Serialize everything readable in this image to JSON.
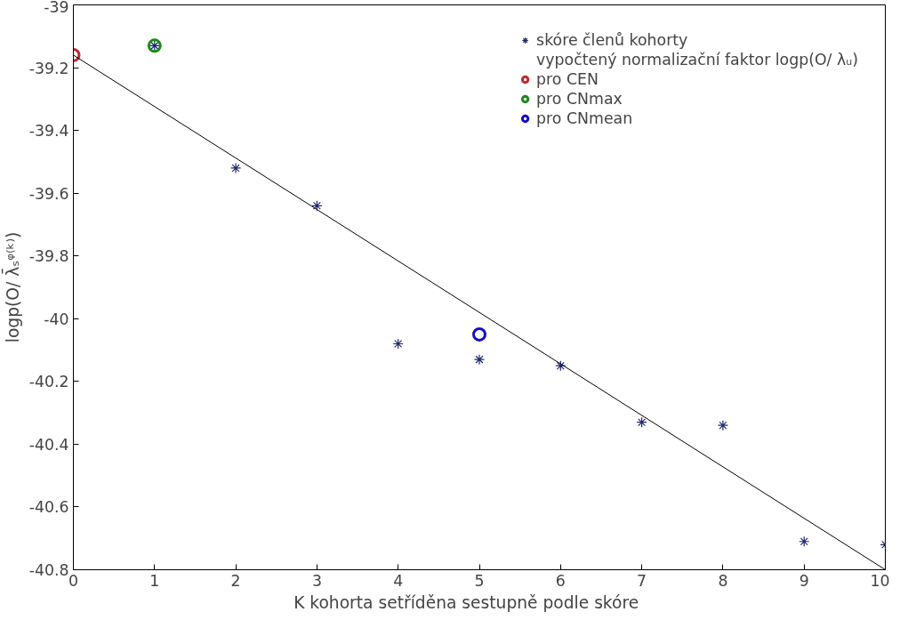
{
  "chart_data": {
    "type": "scatter",
    "xlabel": "K      kohorta setříděna sestupně podle skóre",
    "ylabel": "logp(O/ λ̄ₛᵠ⁽ᵏ⁾)",
    "xlim": [
      0,
      10
    ],
    "ylim": [
      -40.8,
      -39
    ],
    "xticks": [
      0,
      1,
      2,
      3,
      4,
      5,
      6,
      7,
      8,
      9,
      10
    ],
    "yticks": [
      -40.8,
      -40.6,
      -40.4,
      -40.2,
      -40,
      -39.8,
      -39.6,
      -39.4,
      -39.2,
      -39
    ],
    "grid": false,
    "legend": "top right",
    "annotations": [
      "vypočtený normalizační faktor logp(O/ λᵤ)"
    ],
    "series": [
      {
        "name": "skóre členů kohorty",
        "color": "#1f2a6e",
        "marker": "cross",
        "x": [
          1,
          2,
          3,
          4,
          5,
          6,
          7,
          8,
          9,
          10
        ],
        "values": [
          -39.13,
          -39.52,
          -39.64,
          -40.08,
          -40.13,
          -40.15,
          -40.33,
          -40.34,
          -40.71,
          -40.72
        ]
      },
      {
        "name": "pro CEN",
        "color": "#c0282d",
        "marker": "circle",
        "x": [
          0
        ],
        "values": [
          -39.16
        ]
      },
      {
        "name": "pro CNmax",
        "color": "#1a8a1a",
        "marker": "circle",
        "x": [
          1
        ],
        "values": [
          -39.13
        ]
      },
      {
        "name": "pro CNmean",
        "color": "#1010c0",
        "marker": "circle",
        "x": [
          5
        ],
        "values": [
          -40.05
        ]
      },
      {
        "type": "line",
        "color": "#000000",
        "marker": "none",
        "x": [
          0,
          10
        ],
        "values": [
          -39.16,
          -40.8
        ]
      }
    ]
  }
}
